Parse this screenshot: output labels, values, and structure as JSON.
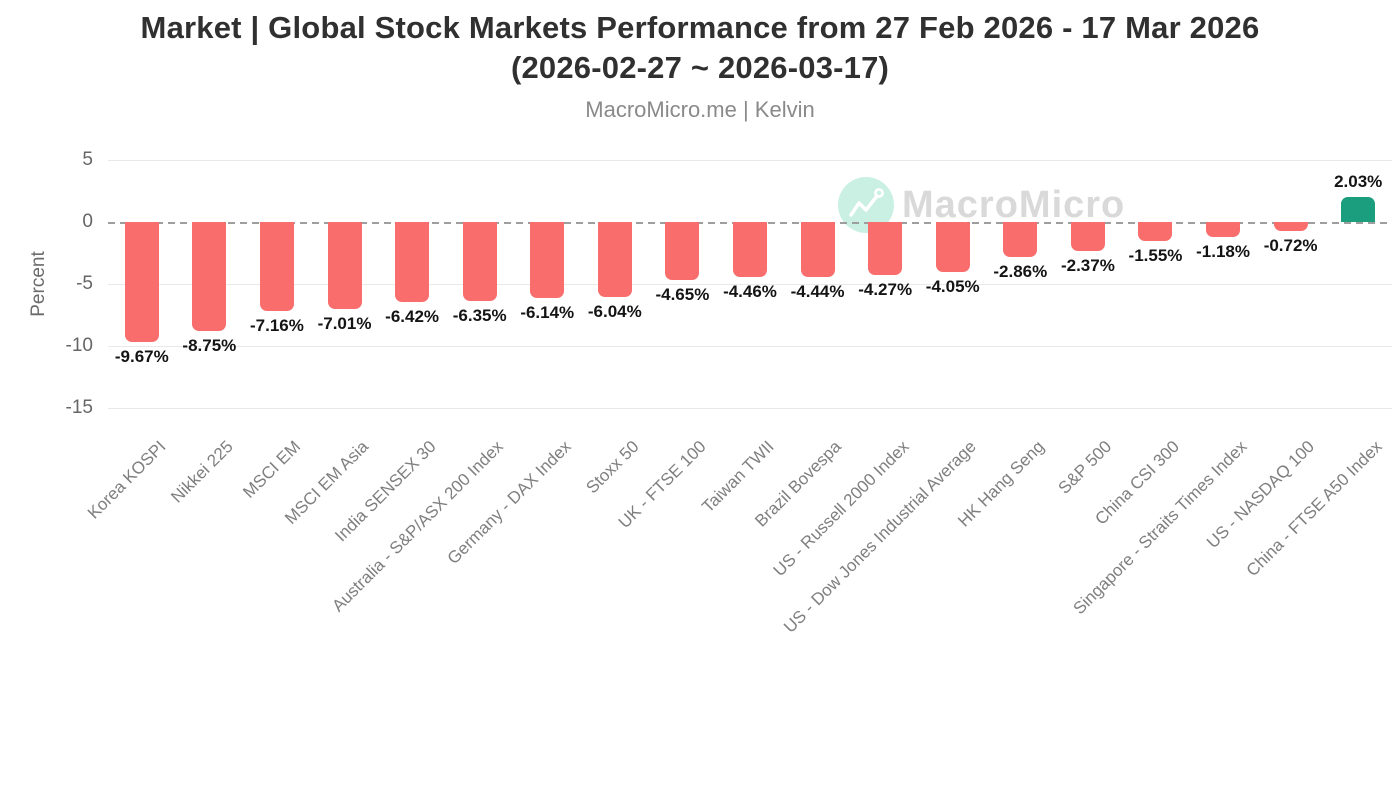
{
  "header": {
    "title_line1": "Market | Global Stock Markets Performance from 27 Feb 2026 - 17 Mar 2026",
    "title_line2": "(2026-02-27 ~ 2026-03-17)",
    "source": "MacroMicro.me | Kelvin"
  },
  "watermark": {
    "text": "MacroMicro",
    "circle_color": "#c9f0e3",
    "text_color": "#d9d9d9"
  },
  "chart_data": {
    "type": "bar",
    "title": "Market | Global Stock Markets Performance from 27 Feb 2026 - 17 Mar 2026 (2026-02-27 ~ 2026-03-17)",
    "subtitle": "MacroMicro.me | Kelvin",
    "ylabel": "Percent",
    "yticks": [
      5,
      0,
      -5,
      -10,
      -15
    ],
    "ylim": [
      -17.5,
      6.5
    ],
    "grid": true,
    "zero_line": "dashed",
    "legend": "none",
    "categories": [
      "Korea KOSPI",
      "Nikkei 225",
      "MSCI EM",
      "MSCI EM Asia",
      "India SENSEX 30",
      "Australia - S&P/ASX 200 Index",
      "Germany - DAX Index",
      "Stoxx 50",
      "UK - FTSE 100",
      "Taiwan TWII",
      "Brazil Bovespa",
      "US - Russell 2000 Index",
      "US - Dow Jones Industrial Average",
      "HK Hang Seng",
      "S&P 500",
      "China CSI 300",
      "Singapore - Straits Times Index",
      "US - NASDAQ 100",
      "China - FTSE A50 Index"
    ],
    "values": [
      -9.67,
      -8.75,
      -7.16,
      -7.01,
      -6.42,
      -6.35,
      -6.14,
      -6.04,
      -4.65,
      -4.46,
      -4.44,
      -4.27,
      -4.05,
      -2.86,
      -2.37,
      -1.55,
      -1.18,
      -0.72,
      2.03
    ],
    "value_labels": [
      "-9.67%",
      "-8.75%",
      "-7.16%",
      "-7.01%",
      "-6.42%",
      "-6.35%",
      "-6.14%",
      "-6.04%",
      "-4.65%",
      "-4.46%",
      "-4.44%",
      "-4.27%",
      "-4.05%",
      "-2.86%",
      "-2.37%",
      "-1.55%",
      "-1.18%",
      "-0.72%",
      "2.03%"
    ],
    "bar_colors": {
      "negative": "#f96e6c",
      "positive": "#1a9e7d"
    }
  }
}
